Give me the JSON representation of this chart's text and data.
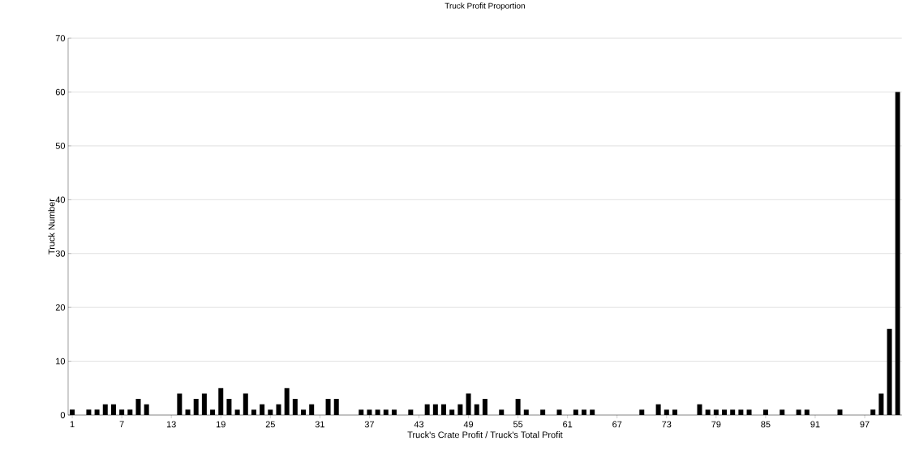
{
  "chart_data": {
    "type": "bar",
    "title": "Truck Profit Proportion",
    "xlabel": "Truck's Crate Profit / Truck's Total Profit",
    "ylabel": "Truck Number",
    "categories": [
      "1",
      null,
      null,
      null,
      null,
      null,
      "7",
      null,
      null,
      null,
      null,
      null,
      "13",
      null,
      null,
      null,
      null,
      null,
      "19",
      null,
      null,
      null,
      null,
      null,
      "25",
      null,
      null,
      null,
      null,
      null,
      "31",
      null,
      null,
      null,
      null,
      null,
      "37",
      null,
      null,
      null,
      null,
      null,
      "43",
      null,
      null,
      null,
      null,
      null,
      "49",
      null,
      null,
      null,
      null,
      null,
      "55",
      null,
      null,
      null,
      null,
      null,
      "61",
      null,
      null,
      null,
      null,
      null,
      "67",
      null,
      null,
      null,
      null,
      null,
      "73",
      null,
      null,
      null,
      null,
      null,
      "79",
      null,
      null,
      null,
      null,
      null,
      "85",
      null,
      null,
      null,
      null,
      null,
      "91",
      null,
      null,
      null,
      null,
      null,
      "97",
      null,
      null,
      null,
      null
    ],
    "values": [
      1,
      0,
      1,
      1,
      2,
      2,
      1,
      1,
      3,
      2,
      0,
      0,
      0,
      4,
      1,
      3,
      4,
      1,
      5,
      3,
      1,
      4,
      1,
      2,
      1,
      2,
      5,
      3,
      1,
      2,
      0,
      3,
      3,
      0,
      0,
      1,
      1,
      1,
      1,
      1,
      0,
      1,
      0,
      2,
      2,
      2,
      1,
      2,
      4,
      2,
      3,
      0,
      1,
      0,
      3,
      1,
      0,
      1,
      0,
      1,
      0,
      1,
      1,
      1,
      0,
      0,
      0,
      0,
      0,
      1,
      0,
      2,
      1,
      1,
      0,
      0,
      2,
      1,
      1,
      1,
      1,
      1,
      1,
      0,
      1,
      0,
      1,
      0,
      1,
      1,
      0,
      0,
      0,
      1,
      0,
      0,
      0,
      1,
      4,
      16,
      60
    ],
    "color": "#000000",
    "ylim": [
      0,
      70
    ],
    "yticks": [
      0,
      10,
      20,
      30,
      40,
      50,
      60,
      70
    ],
    "grid": "y"
  }
}
